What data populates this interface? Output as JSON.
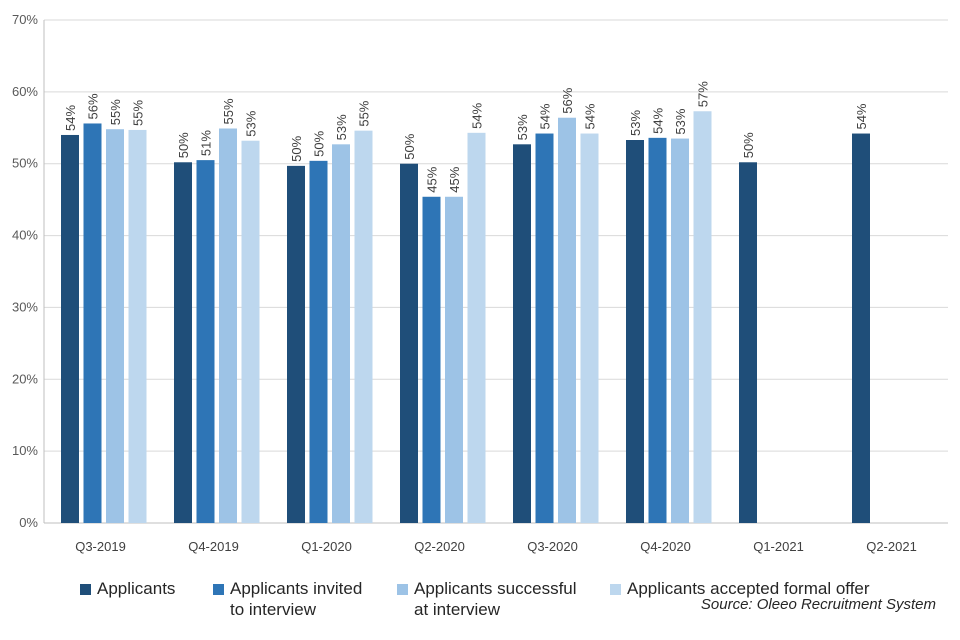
{
  "chart_data": {
    "type": "bar",
    "categories": [
      "Q3-2019",
      "Q4-2019",
      "Q1-2020",
      "Q2-2020",
      "Q3-2020",
      "Q4-2020",
      "Q1-2021",
      "Q2-2021"
    ],
    "series": [
      {
        "name": "Applicants",
        "color": "#1f4e79",
        "values": [
          54,
          50.2,
          49.7,
          50,
          52.7,
          53.3,
          50.2,
          54.2
        ],
        "labels": [
          "54%",
          "50%",
          "50%",
          "50%",
          "53%",
          "53%",
          "50%",
          "54%"
        ]
      },
      {
        "name": "Applicants invited\nto interview",
        "color": "#2e75b6",
        "values": [
          55.6,
          50.5,
          50.4,
          45.4,
          54.2,
          53.6,
          null,
          null
        ],
        "labels": [
          "56%",
          "51%",
          "50%",
          "45%",
          "54%",
          "54%",
          "",
          ""
        ]
      },
      {
        "name": "Applicants successful\nat interview",
        "color": "#9dc3e6",
        "values": [
          54.8,
          54.9,
          52.7,
          45.4,
          56.4,
          53.5,
          null,
          null
        ],
        "labels": [
          "55%",
          "55%",
          "53%",
          "45%",
          "56%",
          "53%",
          "",
          ""
        ]
      },
      {
        "name": "Applicants accepted formal offer",
        "color": "#bdd7ee",
        "values": [
          54.7,
          53.2,
          54.6,
          54.3,
          54.2,
          57.3,
          null,
          null
        ],
        "labels": [
          "55%",
          "53%",
          "55%",
          "54%",
          "54%",
          "57%",
          "",
          ""
        ]
      }
    ],
    "yticks": [
      "0%",
      "10%",
      "20%",
      "30%",
      "40%",
      "50%",
      "60%",
      "70%"
    ],
    "ylim": [
      0,
      70
    ],
    "grid": true,
    "legend": "bottom",
    "title": "",
    "xlabel": "",
    "ylabel": ""
  },
  "source": "Source: Oleeo Recruitment System"
}
